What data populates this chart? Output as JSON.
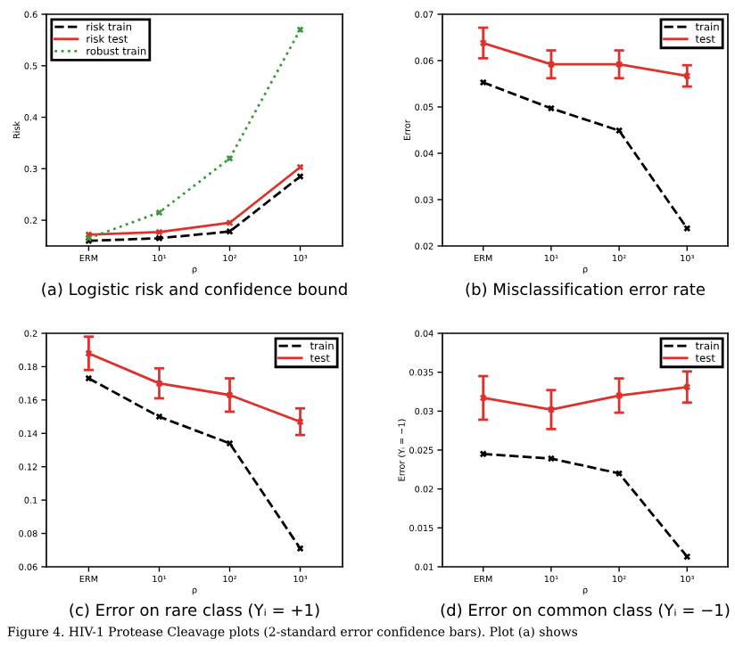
{
  "chart_data": [
    {
      "type": "line",
      "categories": [
        "ERM",
        "10¹",
        "10²",
        "10³"
      ],
      "xlabel": "ρ",
      "ylabel": "Risk",
      "ylim": [
        0.15,
        0.6
      ],
      "yticks": [
        0.2,
        0.3,
        0.4,
        0.5,
        0.6
      ],
      "legend": "top left",
      "grid": false,
      "marker": "cross",
      "series": [
        {
          "name": "risk train",
          "color": "#000000",
          "line_style": "dashed",
          "values": [
            0.16,
            0.165,
            0.178,
            0.285
          ]
        },
        {
          "name": "risk test",
          "color": "#e0302c",
          "line_style": "solid",
          "values": [
            0.172,
            0.177,
            0.195,
            0.303
          ]
        },
        {
          "name": "robust train",
          "color": "#3a9a3a",
          "line_style": "dotted",
          "values": [
            0.165,
            0.215,
            0.32,
            0.57
          ]
        }
      ],
      "annotations": [
        "(a) Logistic risk and confidence bound"
      ]
    },
    {
      "type": "line",
      "categories": [
        "ERM",
        "10¹",
        "10²",
        "10³"
      ],
      "xlabel": "ρ",
      "ylabel": "Error",
      "ylim": [
        0.02,
        0.07
      ],
      "yticks": [
        0.02,
        0.03,
        0.04,
        0.05,
        0.06,
        0.07
      ],
      "legend": "top right",
      "grid": false,
      "marker": "cross",
      "series": [
        {
          "name": "train",
          "color": "#000000",
          "line_style": "dashed",
          "values": [
            0.0553,
            0.0497,
            0.0449,
            0.0238
          ]
        },
        {
          "name": "test",
          "color": "#e0302c",
          "line_style": "solid",
          "values": [
            0.0638,
            0.0592,
            0.0592,
            0.0567
          ],
          "errors": [
            0.0033,
            0.003,
            0.003,
            0.0023
          ]
        }
      ],
      "annotations": [
        "(b) Misclassification error rate"
      ]
    },
    {
      "type": "line",
      "categories": [
        "ERM",
        "10¹",
        "10²",
        "10³"
      ],
      "xlabel": "ρ",
      "ylim": [
        0.06,
        0.2
      ],
      "yticks": [
        0.06,
        0.08,
        0.1,
        0.12,
        0.14,
        0.16,
        0.18,
        0.2
      ],
      "legend": "top right",
      "grid": false,
      "marker": "cross",
      "series": [
        {
          "name": "train",
          "color": "#000000",
          "line_style": "dashed",
          "values": [
            0.173,
            0.15,
            0.134,
            0.071
          ]
        },
        {
          "name": "test",
          "color": "#e0302c",
          "line_style": "solid",
          "values": [
            0.188,
            0.17,
            0.163,
            0.147
          ],
          "errors": [
            0.01,
            0.009,
            0.01,
            0.008
          ]
        }
      ],
      "annotations": [
        "(c) Error on rare class (Yᵢ = +1)"
      ]
    },
    {
      "type": "line",
      "categories": [
        "ERM",
        "10¹",
        "10²",
        "10³"
      ],
      "xlabel": "ρ",
      "ylabel": "Error (Yᵢ = −1)",
      "ylim": [
        0.01,
        0.04
      ],
      "yticks": [
        0.01,
        0.015,
        0.02,
        0.025,
        0.03,
        0.035,
        0.04
      ],
      "legend": "top right",
      "grid": false,
      "marker": "cross",
      "series": [
        {
          "name": "train",
          "color": "#000000",
          "line_style": "dashed",
          "values": [
            0.0245,
            0.0239,
            0.022,
            0.0113
          ]
        },
        {
          "name": "test",
          "color": "#e0302c",
          "line_style": "solid",
          "values": [
            0.0317,
            0.0302,
            0.032,
            0.0331
          ],
          "errors": [
            0.0028,
            0.0025,
            0.0022,
            0.002
          ]
        }
      ],
      "annotations": [
        "(d) Error on common class (Yᵢ = −1)",
        "Figure 4. HIV-1 Protease Cleavage plots (2-standard error confidence bars). Plot (a) shows"
      ]
    }
  ]
}
